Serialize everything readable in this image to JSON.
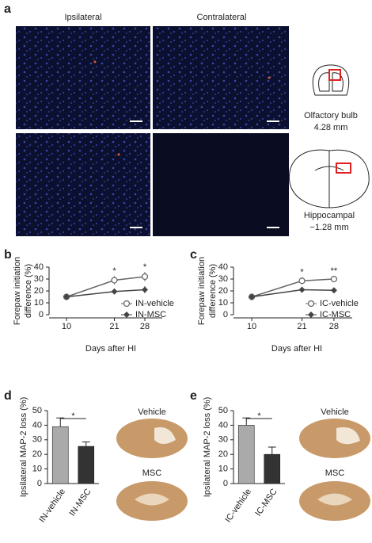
{
  "figure": {
    "panel_labels": [
      "a",
      "b",
      "c",
      "d",
      "e"
    ],
    "column_titles": [
      "Ipsilateral",
      "Contralateral"
    ],
    "regions": [
      {
        "name": "Olfactory bulb",
        "coordinate": "4.28 mm"
      },
      {
        "name": "Hippocampal",
        "coordinate": "−1.28 mm"
      }
    ],
    "d_images": [
      "Vehicle",
      "MSC"
    ],
    "e_images": [
      "Vehicle",
      "MSC"
    ]
  },
  "chart_data": [
    {
      "type": "line",
      "ylabel": [
        "Forepaw initiation",
        "difference (%)"
      ],
      "xlabel": "Days after HI",
      "x": [
        10,
        21,
        28
      ],
      "xlim": [
        6,
        32
      ],
      "xticks": [
        10,
        21,
        28
      ],
      "ylim": [
        0,
        40
      ],
      "yticks": [
        0,
        10,
        20,
        30,
        40
      ],
      "series": [
        {
          "name": "IN-vehicle",
          "color": "#666666",
          "marker": "circle",
          "values": [
            15,
            29,
            32
          ],
          "errors": [
            1.5,
            3.5,
            4
          ]
        },
        {
          "name": "IN-MSC",
          "color": "#444444",
          "marker": "diamond",
          "values": [
            15,
            19.5,
            21
          ],
          "errors": [
            1.5,
            2.5,
            3
          ]
        }
      ],
      "annotations": [
        {
          "text": "*",
          "x": 21
        },
        {
          "text": "*",
          "x": 28
        }
      ],
      "legend": "lower right"
    },
    {
      "type": "line",
      "ylabel": [
        "Forepaw initiation",
        "difference (%)"
      ],
      "xlabel": "Days after HI",
      "x": [
        10,
        21,
        28
      ],
      "xlim": [
        6,
        32
      ],
      "xticks": [
        10,
        21,
        28
      ],
      "ylim": [
        0,
        40
      ],
      "yticks": [
        0,
        10,
        20,
        30,
        40
      ],
      "series": [
        {
          "name": "IC-vehicle",
          "color": "#666666",
          "marker": "circle",
          "values": [
            15,
            28.5,
            30
          ],
          "errors": [
            1.5,
            3,
            2.5
          ]
        },
        {
          "name": "IC-MSC",
          "color": "#444444",
          "marker": "diamond",
          "values": [
            15,
            21,
            20.5
          ],
          "errors": [
            1,
            2,
            2
          ]
        }
      ],
      "annotations": [
        {
          "text": "*",
          "x": 21
        },
        {
          "text": "**",
          "x": 28
        }
      ],
      "legend": "lower right"
    },
    {
      "type": "bar",
      "ylabel": "Ipsilateral MAP-2 loss (%)",
      "categories": [
        "IN-vehicle",
        "IN-MSC"
      ],
      "values": [
        39,
        25.5
      ],
      "errors": [
        6,
        3
      ],
      "colors": [
        "#aaaaaa",
        "#333333"
      ],
      "ylim": [
        0,
        50
      ],
      "yticks": [
        0,
        10,
        20,
        30,
        40,
        50
      ],
      "annotations": [
        {
          "text": "*"
        }
      ]
    },
    {
      "type": "bar",
      "ylabel": "Ipsilateral MAP-2 loss (%)",
      "categories": [
        "IC-vehicle",
        "IC-MSC"
      ],
      "values": [
        40,
        20
      ],
      "errors": [
        5,
        5
      ],
      "colors": [
        "#aaaaaa",
        "#333333"
      ],
      "ylim": [
        0,
        50
      ],
      "yticks": [
        0,
        10,
        20,
        30,
        40,
        50
      ],
      "annotations": [
        {
          "text": "*"
        }
      ]
    }
  ]
}
